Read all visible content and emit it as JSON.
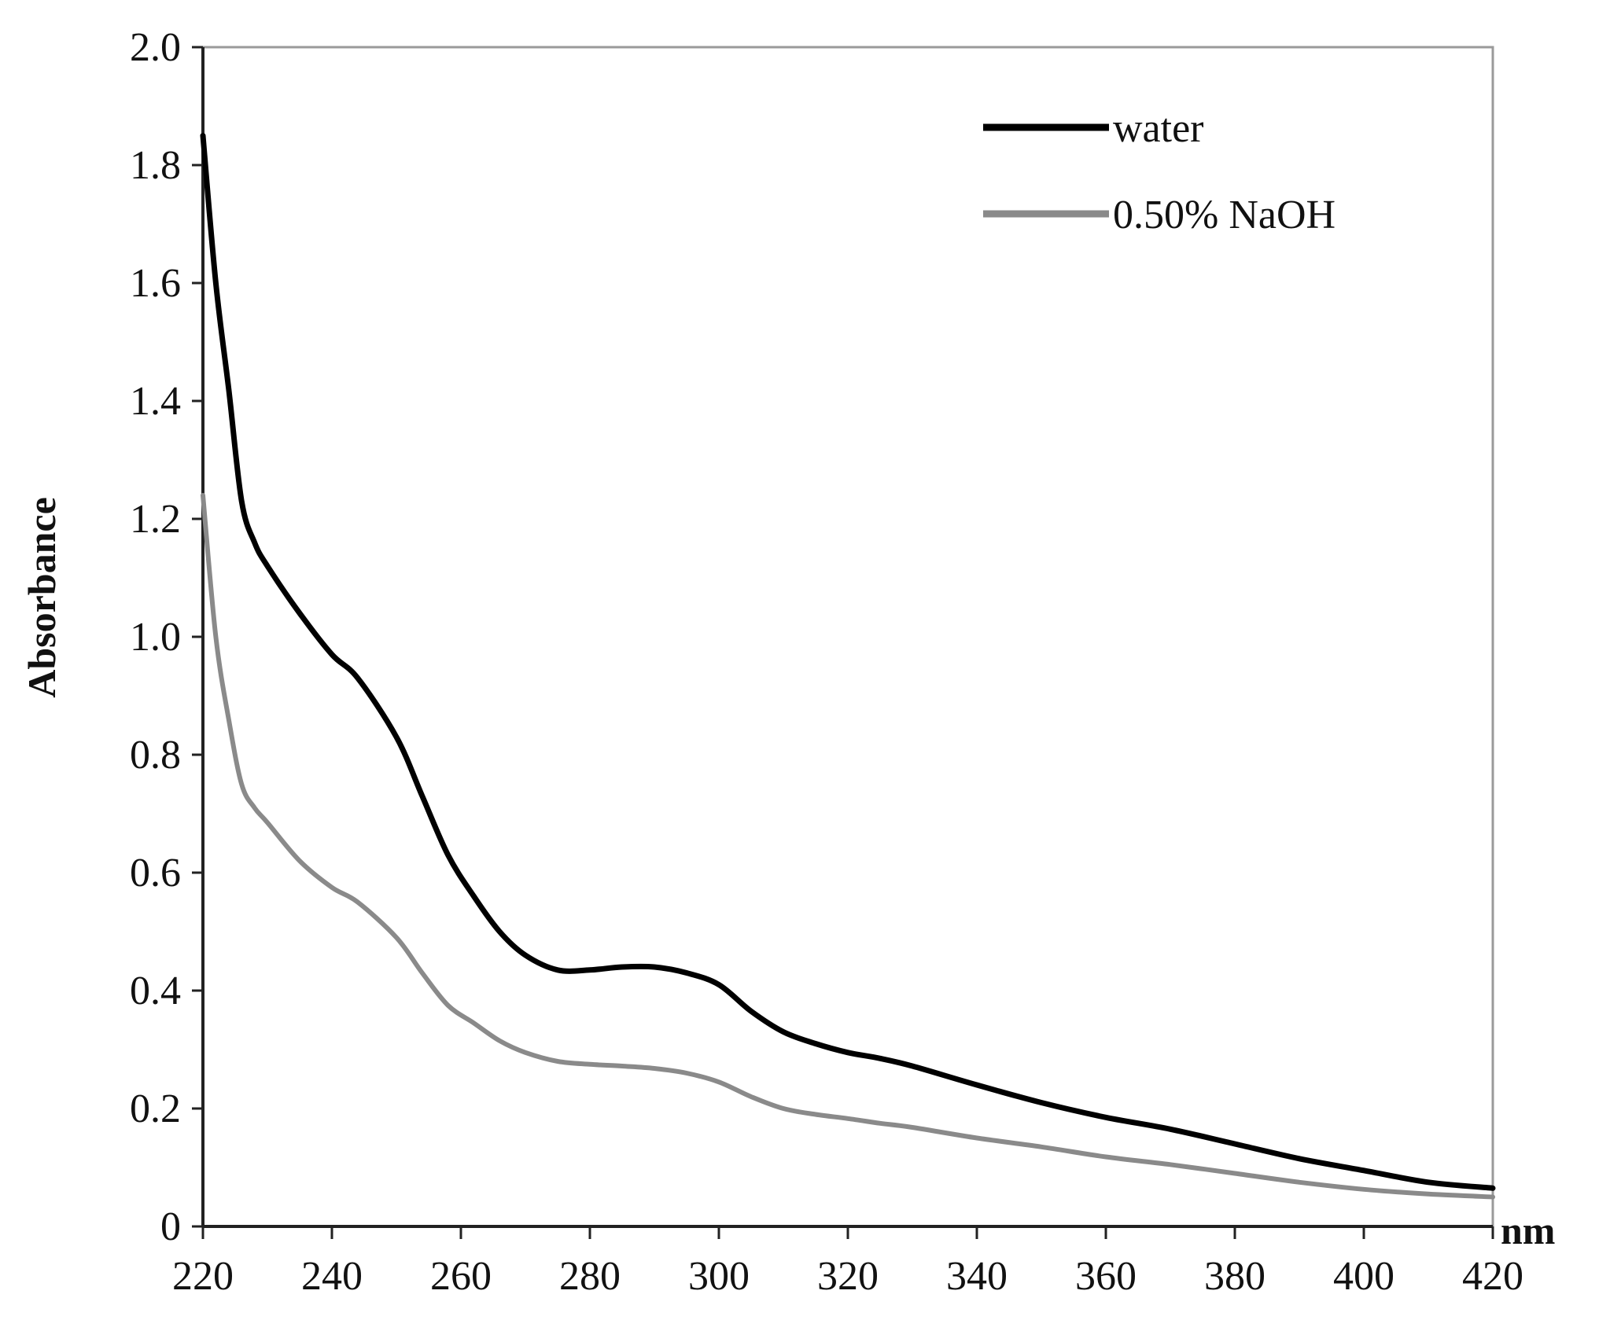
{
  "chart_data": {
    "type": "line",
    "title": "",
    "xlabel": "nm",
    "ylabel": "Absorbance",
    "xlim": [
      220,
      420
    ],
    "ylim": [
      0,
      2.0
    ],
    "x_ticks": [
      "220",
      "240",
      "260",
      "280",
      "300",
      "320",
      "340",
      "360",
      "380",
      "400",
      "420"
    ],
    "y_ticks": [
      "0",
      "0.2",
      "0.4",
      "0.6",
      "0.8",
      "1.0",
      "1.2",
      "1.4",
      "1.6",
      "1.8",
      "2.0"
    ],
    "grid": false,
    "legend": "top-right",
    "x": [
      220,
      222,
      224,
      226,
      228,
      230,
      235,
      240,
      244,
      250,
      254,
      258,
      262,
      266,
      270,
      275,
      280,
      285,
      290,
      295,
      300,
      305,
      310,
      315,
      320,
      325,
      330,
      340,
      350,
      360,
      370,
      380,
      390,
      400,
      410,
      420
    ],
    "series": [
      {
        "name": "water",
        "color": "#000000",
        "values": [
          1.85,
          1.6,
          1.42,
          1.23,
          1.16,
          1.12,
          1.04,
          0.97,
          0.93,
          0.83,
          0.73,
          0.63,
          0.56,
          0.5,
          0.46,
          0.435,
          0.435,
          0.44,
          0.44,
          0.43,
          0.41,
          0.365,
          0.33,
          0.31,
          0.295,
          0.285,
          0.272,
          0.24,
          0.21,
          0.185,
          0.165,
          0.14,
          0.115,
          0.095,
          0.075,
          0.065
        ]
      },
      {
        "name": "0.50% NaOH",
        "color": "#8a8a8a",
        "values": [
          1.24,
          1.0,
          0.86,
          0.75,
          0.71,
          0.685,
          0.62,
          0.575,
          0.55,
          0.49,
          0.43,
          0.375,
          0.345,
          0.315,
          0.295,
          0.28,
          0.275,
          0.272,
          0.268,
          0.26,
          0.245,
          0.22,
          0.2,
          0.19,
          0.183,
          0.175,
          0.168,
          0.15,
          0.135,
          0.118,
          0.105,
          0.09,
          0.075,
          0.063,
          0.055,
          0.05
        ]
      }
    ]
  }
}
